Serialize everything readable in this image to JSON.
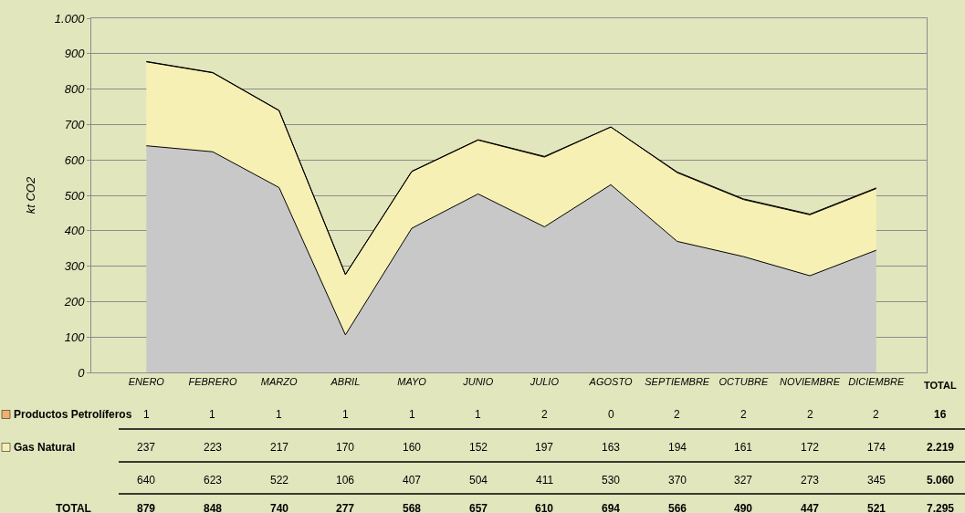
{
  "chart_data": {
    "type": "area",
    "stacked": true,
    "ylabel": "kt CO2",
    "categories": [
      "ENERO",
      "FEBRERO",
      "MARZO",
      "ABRIL",
      "MAYO",
      "JUNIO",
      "JULIO",
      "AGOSTO",
      "SEPTIEMBRE",
      "OCTUBRE",
      "NOVIEMBRE",
      "DICIEMBRE"
    ],
    "series": [
      {
        "color": "#c8c8c8",
        "values": [
          640,
          623,
          522,
          106,
          407,
          504,
          411,
          530,
          370,
          327,
          273,
          345
        ]
      },
      {
        "name": "Gas Natural",
        "color": "#f7f0b5",
        "values": [
          237,
          223,
          217,
          170,
          160,
          152,
          197,
          163,
          194,
          161,
          172,
          174
        ]
      },
      {
        "name": "Productos Petrolíferos",
        "color": "#f0b070",
        "values": [
          1,
          1,
          1,
          1,
          1,
          1,
          2,
          0,
          2,
          2,
          2,
          2
        ]
      }
    ],
    "ylim": [
      0,
      1000
    ],
    "yticks": [
      0,
      100,
      200,
      300,
      400,
      500,
      600,
      700,
      800,
      900,
      {
        "value": 1000,
        "label": "1.000"
      }
    ],
    "grid": "y",
    "legend": "bottom left",
    "data_labels": true,
    "annotations": [
      "TOTAL",
      "16",
      "2.219",
      "5.060",
      "7.295",
      "TOTAL",
      "879",
      "848",
      "740",
      "277",
      "568",
      "657",
      "610",
      "694",
      "566",
      "490",
      "447",
      "521"
    ]
  }
}
